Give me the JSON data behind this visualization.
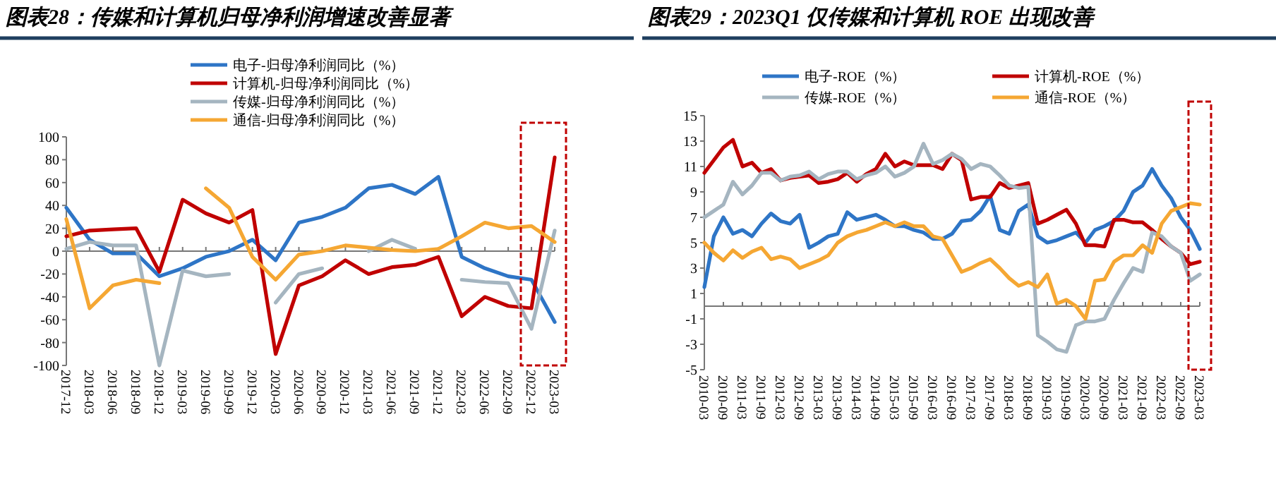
{
  "chart_data": [
    {
      "type": "line",
      "title": "图表28：传媒和计算机归母净利润增速改善显著",
      "legend": "top",
      "categories": [
        "2017-12",
        "2018-03",
        "2018-06",
        "2018-09",
        "2018-12",
        "2019-03",
        "2019-06",
        "2019-09",
        "2019-12",
        "2020-03",
        "2020-06",
        "2020-09",
        "2020-12",
        "2021-03",
        "2021-06",
        "2021-09",
        "2021-12",
        "2022-03",
        "2022-06",
        "2022-09",
        "2022-12",
        "2023-03"
      ],
      "ylim": [
        -100,
        100
      ],
      "yticks": [
        100,
        80,
        60,
        40,
        20,
        0,
        -20,
        -40,
        -60,
        -80,
        -100
      ],
      "series": [
        {
          "name": "电子-归母净利润同比（%）",
          "color": "#2e75c6",
          "values": [
            38,
            10,
            -2,
            -2,
            -22,
            -15,
            -5,
            0,
            10,
            -8,
            25,
            30,
            38,
            55,
            58,
            50,
            65,
            -5,
            -15,
            -22,
            -25,
            -62
          ]
        },
        {
          "name": "计算机-归母净利润同比（%）",
          "color": "#c00000",
          "values": [
            13,
            18,
            19,
            20,
            -18,
            45,
            33,
            25,
            36,
            -90,
            -30,
            -22,
            -8,
            -20,
            -14,
            -12,
            -5,
            -57,
            -40,
            -48,
            -50,
            82
          ]
        },
        {
          "name": "传媒-归母净利润同比（%）",
          "color": "#a5b5c0",
          "values": [
            2,
            8,
            5,
            5,
            -100,
            -17,
            -22,
            -20,
            null,
            -45,
            -20,
            -15,
            null,
            0,
            10,
            2,
            null,
            -25,
            -27,
            -28,
            -68,
            18
          ]
        },
        {
          "name": "通信-归母净利润同比（%）",
          "color": "#f5a733",
          "values": [
            28,
            -50,
            -30,
            -25,
            -28,
            null,
            55,
            38,
            -5,
            -25,
            -3,
            0,
            5,
            3,
            1,
            0,
            2,
            13,
            25,
            20,
            22,
            8
          ]
        }
      ]
    },
    {
      "type": "line",
      "title": "图表29：2023Q1 仅传媒和计算机 ROE 出现改善",
      "legend": "top",
      "categories": [
        "2010-03",
        null,
        "2010-09",
        null,
        "2011-03",
        null,
        "2011-09",
        null,
        "2012-03",
        null,
        "2012-09",
        null,
        "2013-03",
        null,
        "2013-09",
        null,
        "2014-03",
        null,
        "2014-09",
        null,
        "2015-03",
        null,
        "2015-09",
        null,
        "2016-03",
        null,
        "2016-09",
        null,
        "2017-03",
        null,
        "2017-09",
        null,
        "2018-03",
        null,
        "2018-09",
        null,
        "2019-03",
        null,
        "2019-09",
        null,
        "2020-03",
        null,
        "2020-09",
        null,
        "2021-03",
        null,
        "2021-09",
        null,
        "2022-03",
        null,
        "2022-09",
        null,
        "2023-03"
      ],
      "ylim": [
        -5,
        15
      ],
      "yticks": [
        15,
        13,
        11,
        9,
        7,
        5,
        3,
        1,
        -1,
        -3,
        -5
      ],
      "series": [
        {
          "name": "电子-ROE（%）",
          "color": "#2e75c6",
          "values": [
            1.5,
            5.5,
            7,
            5.7,
            6,
            5.5,
            6.5,
            7.3,
            6.7,
            6.5,
            7.2,
            4.6,
            5,
            5.5,
            5.7,
            7.4,
            6.8,
            7,
            7.2,
            6.8,
            6.3,
            6.3,
            6,
            5.8,
            5.3,
            5.3,
            5.7,
            6.7,
            6.8,
            7.5,
            8.7,
            6,
            5.7,
            7.5,
            8,
            5.5,
            5,
            5.2,
            5.5,
            5.8,
            5,
            6,
            6.3,
            6.7,
            7.5,
            9,
            9.5,
            10.8,
            9.5,
            8.5,
            7,
            6,
            4.5
          ]
        },
        {
          "name": "计算机-ROE（%）",
          "color": "#c00000",
          "values": [
            10.5,
            11.5,
            12.5,
            13.1,
            11,
            11.3,
            10.5,
            10.8,
            9.9,
            10.1,
            10.2,
            10.3,
            9.7,
            9.8,
            10,
            10.5,
            9.8,
            10.4,
            10.8,
            12,
            11,
            11.4,
            11.1,
            11.1,
            11.1,
            10.8,
            12,
            11.5,
            8.4,
            8.6,
            8.6,
            9.7,
            9.3,
            9.5,
            9.7,
            6.5,
            6.8,
            7.2,
            7.6,
            6.5,
            4.8,
            4.8,
            4.7,
            6.8,
            6.8,
            6.6,
            6.6,
            6,
            5.3,
            4.7,
            4.2,
            3.3,
            3.5
          ]
        },
        {
          "name": "传媒-ROE（%）",
          "color": "#a5b5c0",
          "values": [
            7,
            7.5,
            8,
            9.8,
            8.8,
            9.5,
            10.5,
            10.5,
            9.9,
            10.2,
            10.3,
            10.6,
            10,
            10.4,
            10.6,
            10.6,
            10,
            10.3,
            10.5,
            11,
            10.2,
            10.5,
            11,
            12.8,
            11.2,
            11.5,
            12,
            11.6,
            10.8,
            11.2,
            11,
            10.3,
            9.5,
            9.3,
            9.4,
            -2.3,
            -2.8,
            -3.4,
            -3.6,
            -1.5,
            -1.2,
            -1.2,
            -1,
            0.5,
            1.8,
            3,
            2.7,
            5.8,
            5.5,
            4.7,
            4.2,
            2,
            2.5
          ]
        },
        {
          "name": "通信-ROE（%）",
          "color": "#f5a733",
          "values": [
            5,
            4.2,
            3.6,
            4.4,
            3.8,
            4.3,
            4.6,
            3.7,
            3.9,
            3.7,
            3,
            3.3,
            3.6,
            4,
            5,
            5.5,
            5.8,
            6,
            6.3,
            6.6,
            6.3,
            6.6,
            6.3,
            6.3,
            5.5,
            5.3,
            4,
            2.7,
            3,
            3.4,
            3.7,
            3,
            2.2,
            1.6,
            1.9,
            1.5,
            2.5,
            0.2,
            0.5,
            0,
            -1,
            2,
            2.1,
            3.5,
            4,
            4,
            4.8,
            4.2,
            6.5,
            7.5,
            7.8,
            8.1,
            8
          ]
        }
      ]
    }
  ]
}
